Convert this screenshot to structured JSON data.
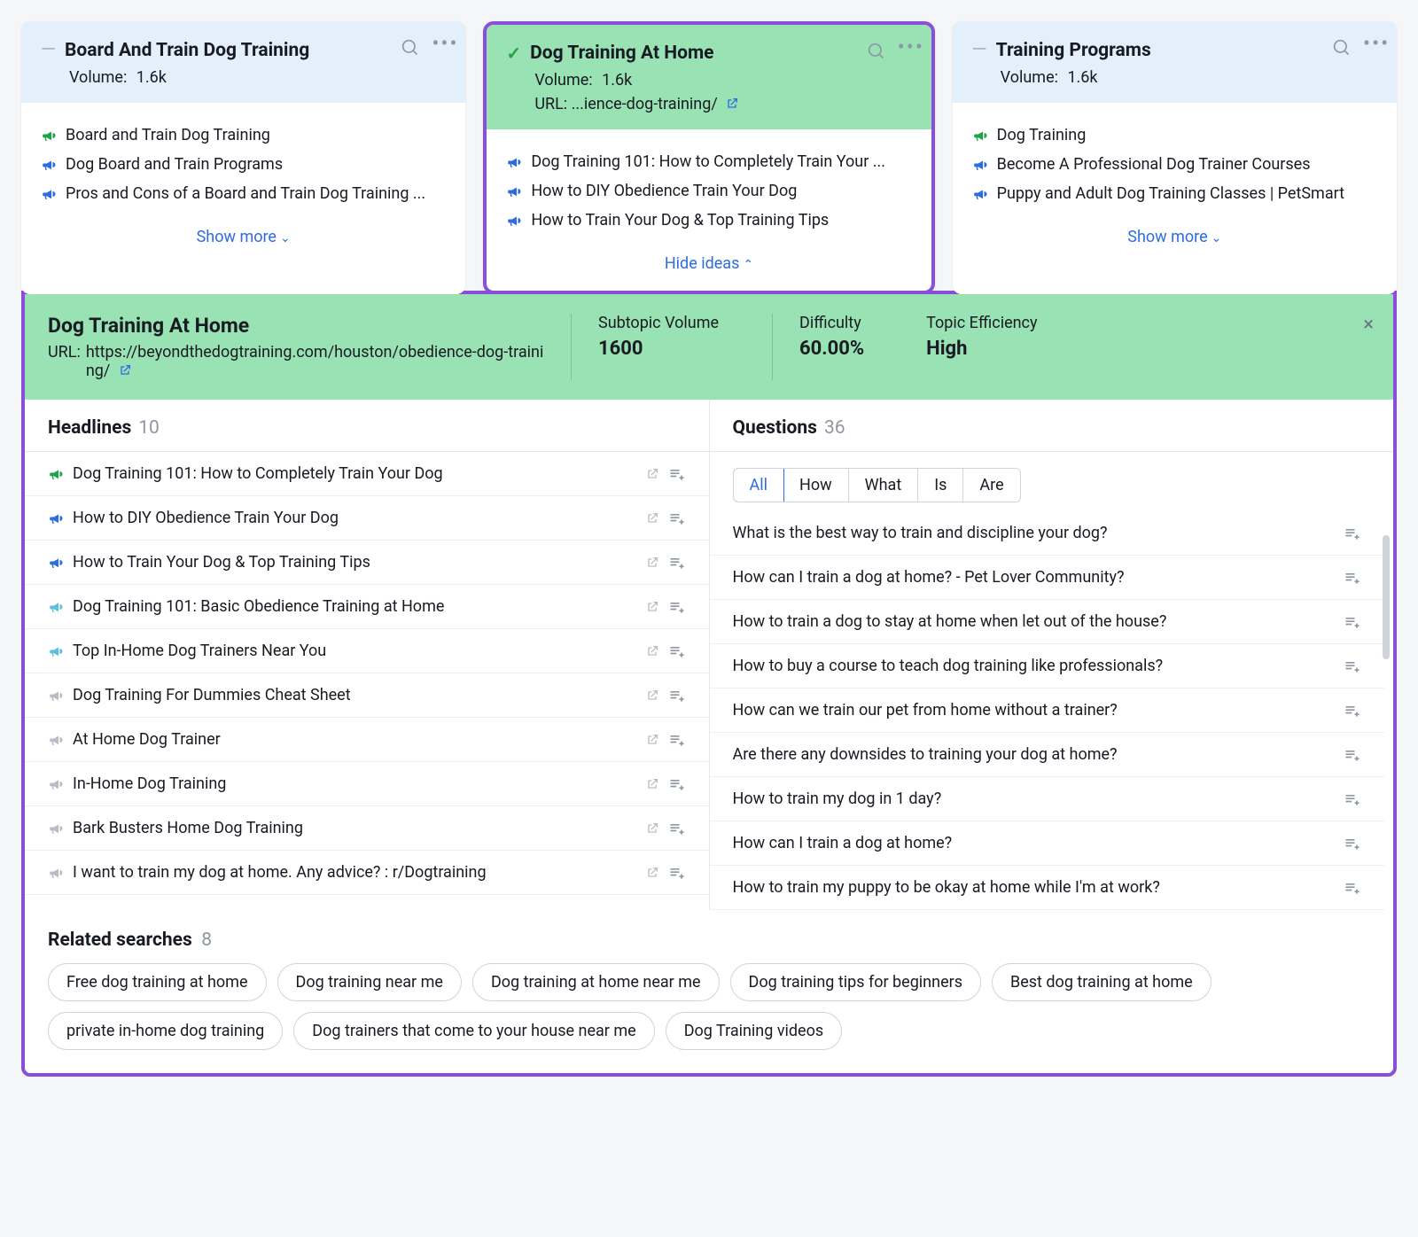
{
  "colors": {
    "purple_border": "#8a4fd8",
    "green_bg": "#99e2b4",
    "blue_bg": "#e3f0fb",
    "link_blue": "#2d6cdf",
    "green": "#1fa34a",
    "light_blue": "#5bc0de",
    "gray": "#b7bdc6"
  },
  "cards": [
    {
      "title": "Board And Train Dog Training",
      "volume_label": "Volume:",
      "volume_value": "1.6k",
      "ideas": [
        {
          "icon": "green",
          "text": "Board and Train Dog Training"
        },
        {
          "icon": "blue",
          "text": "Dog Board and Train Programs"
        },
        {
          "icon": "blue",
          "text": "Pros and Cons of a Board and Train Dog Training ..."
        }
      ],
      "footer_label": "Show more"
    },
    {
      "title": "Dog Training At Home",
      "volume_label": "Volume:",
      "volume_value": "1.6k",
      "url_label": "URL:",
      "url_value": "...ience-dog-training/",
      "ideas": [
        {
          "icon": "blue",
          "text": "Dog Training 101: How to Completely Train Your ..."
        },
        {
          "icon": "blue",
          "text": "How to DIY Obedience Train Your Dog"
        },
        {
          "icon": "blue",
          "text": "How to Train Your Dog & Top Training Tips"
        }
      ],
      "footer_label": "Hide ideas"
    },
    {
      "title": "Training Programs",
      "volume_label": "Volume:",
      "volume_value": "1.6k",
      "ideas": [
        {
          "icon": "green",
          "text": "Dog Training"
        },
        {
          "icon": "blue",
          "text": "Become A Professional Dog Trainer Courses"
        },
        {
          "icon": "blue",
          "text": "Puppy and Adult Dog Training Classes | PetSmart"
        }
      ],
      "footer_label": "Show more"
    }
  ],
  "detail": {
    "title": "Dog Training At Home",
    "url_label": "URL:",
    "url_value": "https://beyondthedogtraining.com/houston/obedience-dog-training/",
    "stats": [
      {
        "label": "Subtopic Volume",
        "value": "1600"
      },
      {
        "label": "Difficulty",
        "value": "60.00%"
      },
      {
        "label": "Topic Efficiency",
        "value": "High"
      }
    ],
    "headlines": {
      "label": "Headlines",
      "count": "10",
      "items": [
        {
          "icon": "green",
          "text": "Dog Training 101: How to Completely Train Your Dog"
        },
        {
          "icon": "blue",
          "text": "How to DIY Obedience Train Your Dog"
        },
        {
          "icon": "blue",
          "text": "How to Train Your Dog & Top Training Tips"
        },
        {
          "icon": "light",
          "text": "Dog Training 101: Basic Obedience Training at Home"
        },
        {
          "icon": "light",
          "text": "Top In-Home Dog Trainers Near You"
        },
        {
          "icon": "gray",
          "text": "Dog Training For Dummies Cheat Sheet"
        },
        {
          "icon": "gray",
          "text": "At Home Dog Trainer"
        },
        {
          "icon": "gray",
          "text": "In-Home Dog Training"
        },
        {
          "icon": "gray",
          "text": "Bark Busters Home Dog Training"
        },
        {
          "icon": "gray",
          "text": "I want to train my dog at home. Any advice? : r/Dogtraining"
        }
      ]
    },
    "questions": {
      "label": "Questions",
      "count": "36",
      "filters": [
        "All",
        "How",
        "What",
        "Is",
        "Are"
      ],
      "active_filter": "All",
      "items": [
        "What is the best way to train and discipline your dog?",
        "How can I train a dog at home? - Pet Lover Community?",
        "How to train a dog to stay at home when let out of the house?",
        "How to buy a course to teach dog training like professionals?",
        "How can we train our pet from home without a trainer?",
        "Are there any downsides to training your dog at home?",
        "How to train my dog in 1 day?",
        "How can I train a dog at home?",
        "How to train my puppy to be okay at home while I'm at work?"
      ]
    },
    "related": {
      "label": "Related searches",
      "count": "8",
      "items": [
        "Free dog training at home",
        "Dog training near me",
        "Dog training at home near me",
        "Dog training tips for beginners",
        "Best dog training at home",
        "private in-home dog training",
        "Dog trainers that come to your house near me",
        "Dog Training videos"
      ]
    }
  }
}
